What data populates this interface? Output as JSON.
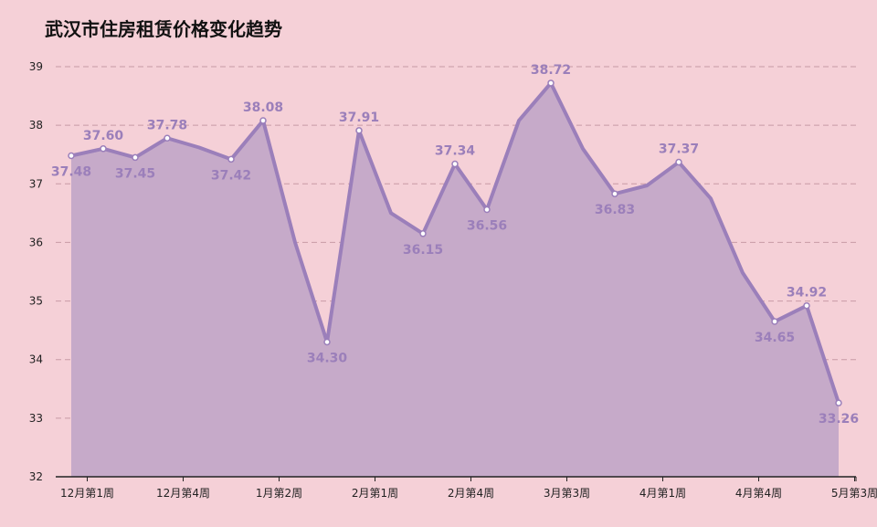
{
  "title": "武汉市住房租赁价格变化趋势",
  "colors": {
    "background": "#f5d0d7",
    "line": "#9b7fba",
    "area": "#c6aac9",
    "label": "#9b7fba",
    "grid": "#c89aa6",
    "axis": "#222222"
  },
  "chart_data": {
    "type": "area",
    "title": "武汉市住房租赁价格变化趋势",
    "xlabel": "",
    "ylabel": "",
    "ylim": [
      32,
      39
    ],
    "yticks": [
      32,
      33,
      34,
      35,
      36,
      37,
      38,
      39
    ],
    "grid": true,
    "x_tick_labels": [
      "12月第1周",
      "12月第4周",
      "1月第2周",
      "2月第1周",
      "2月第4周",
      "3月第3周",
      "4月第1周",
      "4月第4周",
      "5月第3周"
    ],
    "x_tick_index": [
      0.5,
      3.5,
      6.5,
      9.5,
      12.5,
      15.5,
      18.5,
      21.5,
      24.5
    ],
    "series": [
      {
        "values": [
          37.48,
          37.6,
          37.45,
          37.78,
          37.62,
          37.42,
          38.08,
          36.0,
          34.3,
          37.91,
          36.5,
          36.15,
          37.34,
          36.56,
          38.08,
          38.72,
          37.6,
          36.83,
          36.97,
          37.37,
          36.75,
          35.48,
          34.65,
          34.92,
          33.26
        ],
        "labels": [
          "37.48",
          "37.60",
          "37.45",
          "37.78",
          null,
          "37.42",
          "38.08",
          null,
          "34.30",
          "37.91",
          null,
          "36.15",
          "37.34",
          "36.56",
          null,
          "38.72",
          null,
          "36.83",
          null,
          "37.37",
          null,
          null,
          "34.65",
          "34.92",
          "33.26"
        ],
        "label_pos": [
          "below",
          "above",
          "below",
          "above",
          null,
          "below",
          "above",
          null,
          "below",
          "above",
          null,
          "below",
          "above",
          "below",
          null,
          "above",
          null,
          "below",
          null,
          "above",
          null,
          null,
          "below",
          "above",
          "below"
        ],
        "dots": [
          true,
          true,
          true,
          true,
          false,
          true,
          true,
          false,
          true,
          true,
          false,
          true,
          true,
          true,
          false,
          true,
          false,
          true,
          false,
          true,
          false,
          false,
          true,
          true,
          true
        ]
      }
    ]
  }
}
